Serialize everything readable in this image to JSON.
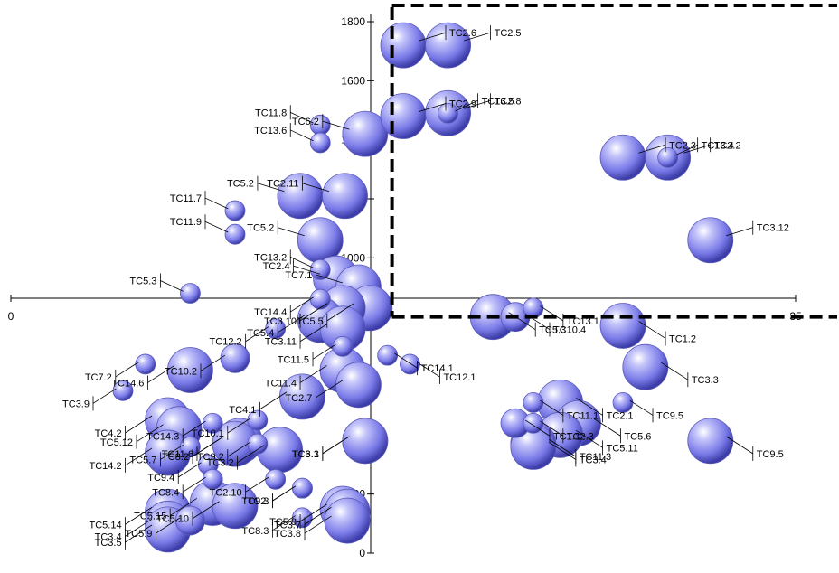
{
  "chart_data": {
    "type": "scatter",
    "variant": "bubble",
    "x_axis": {
      "ticks": [
        "0",
        "35"
      ],
      "range": [
        0,
        35
      ]
    },
    "y_axis": {
      "ticks": [
        "0",
        "200",
        "400",
        "600",
        "800",
        "1000",
        "1200",
        "1400",
        "1600",
        "1800"
      ],
      "range": [
        0,
        1800
      ]
    },
    "threshold_lines": [
      {
        "axis": "x",
        "value": 17
      },
      {
        "axis": "y",
        "value": 800
      }
    ],
    "bubble_color": "#8080ee",
    "points": [
      {
        "label": "TC2.6",
        "x": 17.5,
        "y": 1720,
        "size": "large"
      },
      {
        "label": "TC2.5",
        "x": 19.5,
        "y": 1720,
        "size": "large"
      },
      {
        "label": "TC11.8",
        "x": 13.8,
        "y": 1450,
        "size": "small"
      },
      {
        "label": "TC13.6",
        "x": 13.8,
        "y": 1390,
        "size": "small"
      },
      {
        "label": "TC6.2",
        "x": 15.8,
        "y": 1420,
        "size": "large"
      },
      {
        "label": "TC2.9",
        "x": 17.5,
        "y": 1480,
        "size": "large"
      },
      {
        "label": "TC2.8",
        "x": 19.5,
        "y": 1490,
        "size": "large"
      },
      {
        "label": "TC13.5",
        "x": 19.5,
        "y": 1490,
        "size": "small"
      },
      {
        "label": "TC2.2",
        "x": 29.3,
        "y": 1340,
        "size": "large"
      },
      {
        "label": "TC2.3",
        "x": 27.3,
        "y": 1340,
        "size": "large"
      },
      {
        "label": "TC13.4",
        "x": 29.3,
        "y": 1340,
        "size": "small"
      },
      {
        "label": "TC5.2",
        "x": 12.9,
        "y": 1210,
        "size": "large"
      },
      {
        "label": "TC2.11",
        "x": 14.9,
        "y": 1210,
        "size": "large"
      },
      {
        "label": "TC11.7",
        "x": 10.0,
        "y": 1160,
        "size": "small"
      },
      {
        "label": "TC11.9",
        "x": 10.0,
        "y": 1080,
        "size": "small"
      },
      {
        "label": "TC5.2",
        "x": 13.8,
        "y": 1060,
        "size": "large"
      },
      {
        "label": "TC13.2",
        "x": 13.8,
        "y": 960,
        "size": "small"
      },
      {
        "label": "TC3.12",
        "x": 31.2,
        "y": 1060,
        "size": "large"
      },
      {
        "label": "TC2.4",
        "x": 14.5,
        "y": 930,
        "size": "large"
      },
      {
        "label": "TC7.1",
        "x": 15.5,
        "y": 900,
        "size": "large"
      },
      {
        "label": "TC14.4",
        "x": 13.8,
        "y": 860,
        "size": "small"
      },
      {
        "label": "TC5.5",
        "x": 16.0,
        "y": 830,
        "size": "large"
      },
      {
        "label": "TC3.10",
        "x": 14.8,
        "y": 830,
        "size": "large"
      },
      {
        "label": "TC5.3",
        "x": 8.0,
        "y": 880,
        "size": "small"
      },
      {
        "label": "TC10.4",
        "x": 22.5,
        "y": 800,
        "size": "medium"
      },
      {
        "label": "TC5.3",
        "x": 21.5,
        "y": 800,
        "size": "large"
      },
      {
        "label": "TC13.1",
        "x": 23.3,
        "y": 830,
        "size": "small"
      },
      {
        "label": "TC1.2",
        "x": 27.3,
        "y": 770,
        "size": "large"
      },
      {
        "label": "TC5.4",
        "x": 13.8,
        "y": 790,
        "size": "large"
      },
      {
        "label": "TC3.11",
        "x": 14.8,
        "y": 760,
        "size": "large"
      },
      {
        "label": "TC11.5",
        "x": 14.8,
        "y": 700,
        "size": "small"
      },
      {
        "label": "TC10.2",
        "x": 10.0,
        "y": 660,
        "size": "medium"
      },
      {
        "label": "TC12.2",
        "x": 11.8,
        "y": 760,
        "size": "small"
      },
      {
        "label": "TC3.3",
        "x": 28.3,
        "y": 630,
        "size": "large"
      },
      {
        "label": "TC7.2",
        "x": 6.0,
        "y": 640,
        "size": "small"
      },
      {
        "label": "TC14.6",
        "x": 8.0,
        "y": 620,
        "size": "large"
      },
      {
        "label": "TC11.4",
        "x": 14.8,
        "y": 620,
        "size": "large"
      },
      {
        "label": "TC12.1",
        "x": 17.8,
        "y": 640,
        "size": "small"
      },
      {
        "label": "TC14.1",
        "x": 16.8,
        "y": 670,
        "size": "small"
      },
      {
        "label": "TC2.1",
        "x": 24.5,
        "y": 510,
        "size": "large"
      },
      {
        "label": "TC11.1",
        "x": 23.3,
        "y": 510,
        "size": "small"
      },
      {
        "label": "TC3.9",
        "x": 5.0,
        "y": 550,
        "size": "small"
      },
      {
        "label": "TC4.1",
        "x": 13.0,
        "y": 530,
        "size": "large"
      },
      {
        "label": "TC2.7",
        "x": 15.5,
        "y": 570,
        "size": "large"
      },
      {
        "label": "TC9.5",
        "x": 27.3,
        "y": 510,
        "size": "small"
      },
      {
        "label": "TC9.5",
        "x": 31.2,
        "y": 380,
        "size": "large"
      },
      {
        "label": "TC14.3",
        "x": 9.0,
        "y": 440,
        "size": "small"
      },
      {
        "label": "TC10.1",
        "x": 11.0,
        "y": 450,
        "size": "small"
      },
      {
        "label": "TC4.2",
        "x": 7.0,
        "y": 450,
        "size": "large"
      },
      {
        "label": "TC5.12",
        "x": 7.5,
        "y": 420,
        "size": "large"
      },
      {
        "label": "TC11.6",
        "x": 10.2,
        "y": 380,
        "size": "large"
      },
      {
        "label": "TC3.2",
        "x": 12.0,
        "y": 350,
        "size": "large"
      },
      {
        "label": "TC6.3",
        "x": 15.8,
        "y": 380,
        "size": "large"
      },
      {
        "label": "TC1.1",
        "x": 22.5,
        "y": 440,
        "size": "medium"
      },
      {
        "label": "TC5.6",
        "x": 25.3,
        "y": 440,
        "size": "large"
      },
      {
        "label": "TC2.3",
        "x": 23.3,
        "y": 440,
        "size": "small"
      },
      {
        "label": "TC5.11",
        "x": 24.5,
        "y": 400,
        "size": "large"
      },
      {
        "label": "TC5.7",
        "x": 8.0,
        "y": 360,
        "size": "small"
      },
      {
        "label": "TC3.1",
        "x": 15.8,
        "y": 380,
        "size": "large"
      },
      {
        "label": "TC9.2",
        "x": 11.0,
        "y": 370,
        "size": "small"
      },
      {
        "label": "TC11.3",
        "x": 23.3,
        "y": 370,
        "size": "large"
      },
      {
        "label": "TC14.2",
        "x": 7.0,
        "y": 340,
        "size": "large"
      },
      {
        "label": "TC9.4",
        "x": 8.8,
        "y": 300,
        "size": "small"
      },
      {
        "label": "TC8.2",
        "x": 10.0,
        "y": 370,
        "size": "large"
      },
      {
        "label": "TC9.3",
        "x": 13.0,
        "y": 220,
        "size": "small"
      },
      {
        "label": "TC8.4",
        "x": 9.0,
        "y": 250,
        "size": "small"
      },
      {
        "label": "TC2.10",
        "x": 11.8,
        "y": 250,
        "size": "small"
      },
      {
        "label": "TC5.8",
        "x": 14.8,
        "y": 150,
        "size": "large"
      },
      {
        "label": "TC3.4",
        "x": 23.3,
        "y": 360,
        "size": "large"
      },
      {
        "label": "TC5.14",
        "x": 7.0,
        "y": 140,
        "size": "large"
      },
      {
        "label": "TC5.15",
        "x": 9.0,
        "y": 170,
        "size": "large"
      },
      {
        "label": "TC5.10",
        "x": 10.0,
        "y": 160,
        "size": "large"
      },
      {
        "label": "TC3.7",
        "x": 15.0,
        "y": 140,
        "size": "large"
      },
      {
        "label": "TC3.4",
        "x": 7.0,
        "y": 100,
        "size": "large"
      },
      {
        "label": "TC3.5",
        "x": 7.0,
        "y": 80,
        "size": "large"
      },
      {
        "label": "TC5.9",
        "x": 8.0,
        "y": 110,
        "size": "medium"
      },
      {
        "label": "TC8.3",
        "x": 13.0,
        "y": 120,
        "size": "small"
      },
      {
        "label": "TC2.",
        "x": 13.0,
        "y": 220,
        "size": "small"
      },
      {
        "label": "TC3.8",
        "x": 15.0,
        "y": 110,
        "size": "large"
      }
    ]
  }
}
